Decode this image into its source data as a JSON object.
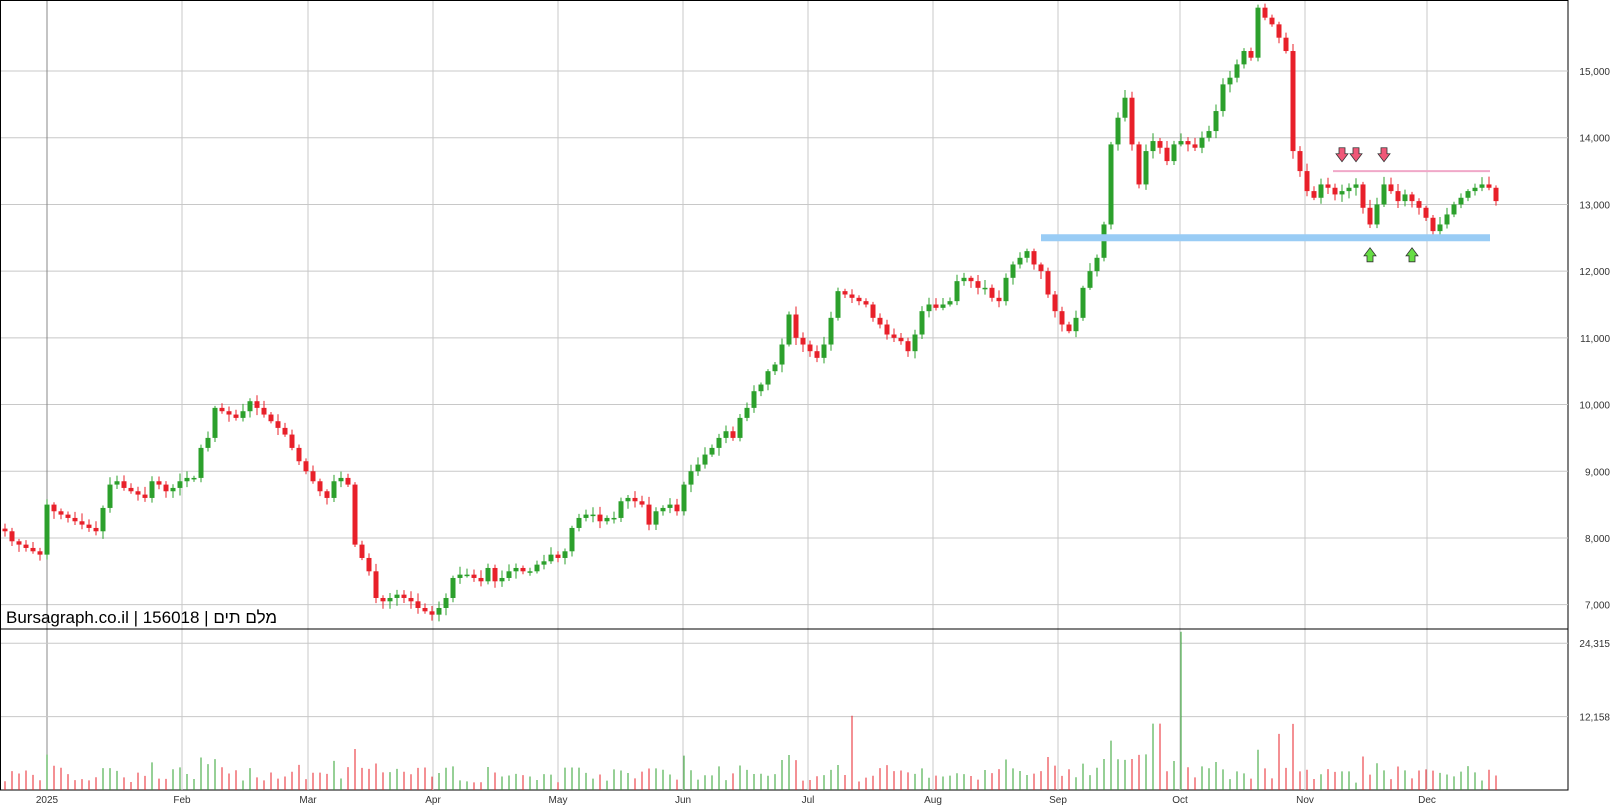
{
  "watermark": {
    "site": "Bursagraph.co.il",
    "sep1": " | ",
    "code": "156018",
    "sep2": " | ",
    "name": "מלם תים"
  },
  "colors": {
    "up": "#2ca02c",
    "down": "#e8202a",
    "grid": "#c8c8c8",
    "support": "#99ccf5",
    "resistance": "#f0a8c8",
    "arrow_down": "#f05878",
    "arrow_up": "#66dd44"
  },
  "chart_data": [
    {
      "type": "candlestick",
      "title": "",
      "y_ticks": [
        {
          "value": 7000,
          "label": "7,000"
        },
        {
          "value": 8000,
          "label": "8,000"
        },
        {
          "value": 9000,
          "label": "9,000"
        },
        {
          "value": 10000,
          "label": "10,000"
        },
        {
          "value": 11000,
          "label": "11,000"
        },
        {
          "value": 12000,
          "label": "12,000"
        },
        {
          "value": 13000,
          "label": "13,000"
        },
        {
          "value": 14000,
          "label": "14,000"
        },
        {
          "value": 15000,
          "label": "15,000"
        }
      ],
      "x_ticks": [
        "2025",
        "Feb",
        "Mar",
        "Apr",
        "May",
        "Jun",
        "Jul",
        "Aug",
        "Sep",
        "Oct",
        "Nov",
        "Dec"
      ],
      "grid": true,
      "ylim": [
        6650,
        16050
      ],
      "closes": [
        8100,
        7950,
        7900,
        7850,
        7800,
        7750,
        8500,
        8400,
        8350,
        8300,
        8250,
        8200,
        8150,
        8100,
        8450,
        8800,
        8850,
        8750,
        8700,
        8650,
        8600,
        8850,
        8800,
        8700,
        8750,
        8850,
        8900,
        8900,
        9350,
        9500,
        9950,
        9900,
        9850,
        9800,
        9900,
        10050,
        9950,
        9850,
        9750,
        9650,
        9550,
        9350,
        9150,
        9000,
        8850,
        8700,
        8600,
        8850,
        8900,
        8800,
        7900,
        7700,
        7500,
        7100,
        7050,
        7100,
        7150,
        7100,
        7050,
        6950,
        6900,
        6850,
        6950,
        7100,
        7400,
        7450,
        7450,
        7400,
        7350,
        7550,
        7350,
        7400,
        7500,
        7550,
        7500,
        7500,
        7600,
        7650,
        7750,
        7700,
        7800,
        8150,
        8300,
        8350,
        8350,
        8250,
        8300,
        8300,
        8550,
        8600,
        8550,
        8500,
        8200,
        8400,
        8450,
        8500,
        8400,
        8800,
        9000,
        9100,
        9250,
        9350,
        9500,
        9600,
        9500,
        9800,
        9950,
        10200,
        10300,
        10500,
        10600,
        10900,
        11350,
        11000,
        10900,
        10800,
        10700,
        10900,
        11300,
        11700,
        11650,
        11600,
        11550,
        11500,
        11300,
        11200,
        11050,
        11000,
        10950,
        10800,
        11050,
        11400,
        11500,
        11450,
        11500,
        11550,
        11850,
        11900,
        11850,
        11750,
        11750,
        11600,
        11550,
        11900,
        12100,
        12200,
        12300,
        12100,
        12000,
        11650,
        11400,
        11200,
        11100,
        11300,
        11750,
        12000,
        12200,
        12700,
        13900,
        14300,
        14600,
        13900,
        13300,
        13800,
        13950,
        13850,
        13650,
        13900,
        13950,
        13900,
        13850,
        14000,
        14100,
        14400,
        14800,
        14900,
        15100,
        15300,
        15200,
        15950,
        15800,
        15700,
        15500,
        15300,
        13800,
        13500,
        13200,
        13100,
        13300,
        13250,
        13150,
        13200,
        13250,
        13300,
        12950,
        12700,
        13000,
        13300,
        13200,
        13050,
        13150,
        13050,
        12950,
        12800,
        12600,
        12700,
        12850,
        13000,
        13100,
        13200,
        13250,
        13300,
        13250,
        13050
      ],
      "volume_ticks": [
        {
          "value": 12158,
          "label": "12,158"
        },
        {
          "value": 24315,
          "label": "24,315"
        }
      ],
      "volume_max": 26500,
      "annotations": {
        "support": {
          "from_index": 148,
          "to_index": 211,
          "value": 12500,
          "label": ""
        },
        "resistance": {
          "from_index": 190,
          "to_index": 211,
          "value": 13500,
          "label": ""
        },
        "down_arrows": [
          191,
          193,
          197
        ],
        "up_arrows": [
          195,
          201
        ]
      }
    }
  ]
}
